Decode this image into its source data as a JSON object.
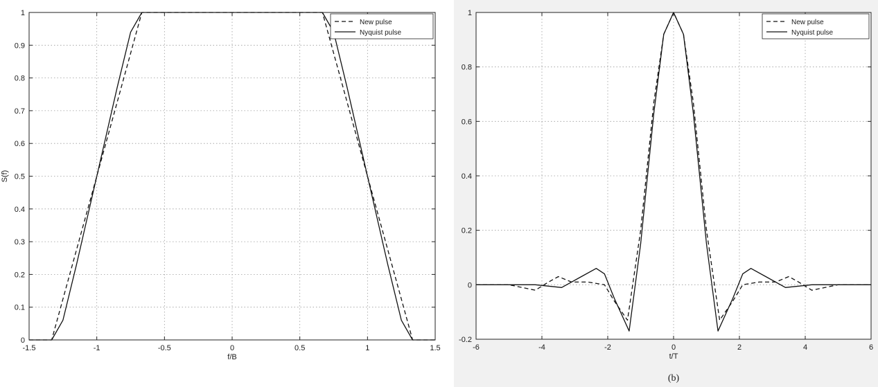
{
  "chart_data": [
    {
      "type": "line",
      "panel": "left",
      "xlabel": "f/B",
      "ylabel": "S(f)",
      "xlim": [
        -1.5,
        1.5
      ],
      "ylim": [
        0,
        1
      ],
      "xticks": [
        "-1.5",
        "-1",
        "-0.5",
        "0",
        "0.5",
        "1",
        "1.5"
      ],
      "yticks": [
        "0",
        "0.1",
        "0.2",
        "0.3",
        "0.4",
        "0.5",
        "0.6",
        "0.7",
        "0.8",
        "0.9",
        "1"
      ],
      "grid": true,
      "legend_position": "top-right",
      "series": [
        {
          "name": "New pulse",
          "style": "dashed",
          "x": [
            -1.5,
            -1.333,
            -1.2,
            -1.0,
            -0.8,
            -0.667,
            -0.6,
            0,
            0.6,
            0.667,
            0.8,
            1.0,
            1.2,
            1.333,
            1.5
          ],
          "y": [
            0,
            0,
            0.2,
            0.5,
            0.8,
            1,
            1,
            1,
            1,
            1,
            0.8,
            0.5,
            0.2,
            0,
            0
          ]
        },
        {
          "name": "Nyquist pulse",
          "style": "solid",
          "x": [
            -1.5,
            -1.333,
            -1.25,
            -1.15,
            -1.0,
            -0.85,
            -0.75,
            -0.667,
            -0.6,
            0,
            0.6,
            0.667,
            0.75,
            0.85,
            1.0,
            1.15,
            1.25,
            1.333,
            1.5
          ],
          "y": [
            0,
            0,
            0.06,
            0.23,
            0.5,
            0.77,
            0.94,
            1,
            1,
            1,
            1,
            1,
            0.94,
            0.77,
            0.5,
            0.23,
            0.06,
            0,
            0
          ]
        }
      ]
    },
    {
      "type": "line",
      "panel": "right",
      "xlabel": "t/T",
      "ylabel": "",
      "caption": "(b)",
      "xlim": [
        -6,
        6
      ],
      "ylim": [
        -0.2,
        1
      ],
      "xticks": [
        "-6",
        "-4",
        "-2",
        "0",
        "2",
        "4",
        "6"
      ],
      "yticks": [
        "-0.2",
        "0",
        "0.2",
        "0.4",
        "0.6",
        "0.8",
        "1"
      ],
      "grid": true,
      "legend_position": "top-right",
      "series": [
        {
          "name": "New pulse",
          "style": "dashed",
          "x": [
            -6,
            -5,
            -4.6,
            -4.2,
            -3.8,
            -3.5,
            -3.1,
            -2.6,
            -2.1,
            -1.8,
            -1.4,
            -1.0,
            -0.6,
            -0.3,
            0,
            0.3,
            0.6,
            1.0,
            1.4,
            1.8,
            2.1,
            2.6,
            3.1,
            3.5,
            3.8,
            4.2,
            4.6,
            5,
            6
          ],
          "y": [
            0,
            0,
            -0.01,
            -0.02,
            0.01,
            0.03,
            0.01,
            0.01,
            0.0,
            -0.06,
            -0.13,
            0.2,
            0.67,
            0.92,
            1.0,
            0.92,
            0.67,
            0.2,
            -0.13,
            -0.06,
            0.0,
            0.01,
            0.01,
            0.03,
            0.01,
            -0.02,
            -0.01,
            0,
            0
          ]
        },
        {
          "name": "Nyquist pulse",
          "style": "solid",
          "x": [
            -6,
            -5,
            -4.2,
            -3.4,
            -2.8,
            -2.35,
            -2.1,
            -1.8,
            -1.35,
            -1.0,
            -0.6,
            -0.3,
            0,
            0.3,
            0.6,
            1.0,
            1.35,
            1.8,
            2.1,
            2.35,
            2.8,
            3.4,
            4.2,
            5,
            6
          ],
          "y": [
            0,
            0,
            0.0,
            -0.01,
            0.03,
            0.06,
            0.04,
            -0.05,
            -0.17,
            0.15,
            0.63,
            0.92,
            1.0,
            0.92,
            0.63,
            0.15,
            -0.17,
            -0.05,
            0.04,
            0.06,
            0.03,
            -0.01,
            0.0,
            0,
            0
          ]
        }
      ]
    }
  ]
}
